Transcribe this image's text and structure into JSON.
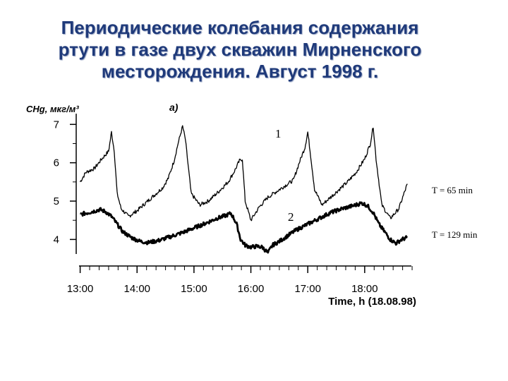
{
  "slide": {
    "title_lines": [
      "Периодические колебания содержания",
      "ртути в газе двух скважин Мирненского",
      "месторождения. Август 1998 г."
    ]
  },
  "chart_data": {
    "type": "line",
    "panel_label": "а)",
    "ylabel": "CHg, мкг/м³",
    "xlabel": "Time, h (18.08.98)",
    "ylim": [
      3.4,
      7.3
    ],
    "xlim": [
      12.98,
      18.82
    ],
    "yticks": [
      7,
      6,
      5,
      4
    ],
    "xticks": [
      {
        "label": "13:00",
        "x": 13.0
      },
      {
        "label": "14:00",
        "x": 14.0
      },
      {
        "label": "15:00",
        "x": 15.0
      },
      {
        "label": "16:00",
        "x": 16.0
      },
      {
        "label": "17:00",
        "x": 17.0
      },
      {
        "label": "18:00",
        "x": 18.0
      }
    ],
    "series": [
      {
        "name": "1",
        "x": [
          13.0,
          13.1,
          13.25,
          13.38,
          13.5,
          13.55,
          13.6,
          13.65,
          13.72,
          13.85,
          14.0,
          14.15,
          14.3,
          14.45,
          14.55,
          14.65,
          14.72,
          14.8,
          14.85,
          14.95,
          15.1,
          15.25,
          15.4,
          15.5,
          15.6,
          15.7,
          15.8,
          15.85,
          15.9,
          16.0,
          16.15,
          16.3,
          16.45,
          16.6,
          16.75,
          16.85,
          16.95,
          17.0,
          17.05,
          17.12,
          17.25,
          17.4,
          17.55,
          17.7,
          17.85,
          18.0,
          18.1,
          18.15,
          18.2,
          18.3,
          18.45,
          18.6,
          18.75
        ],
        "values": [
          5.5,
          5.75,
          5.85,
          6.1,
          6.3,
          6.8,
          6.3,
          5.2,
          4.8,
          4.6,
          4.75,
          4.95,
          5.15,
          5.35,
          5.6,
          6.05,
          6.5,
          6.95,
          6.6,
          5.2,
          4.9,
          5.0,
          5.2,
          5.35,
          5.5,
          5.75,
          6.05,
          6.1,
          5.0,
          4.5,
          4.85,
          5.1,
          5.25,
          5.4,
          5.55,
          6.0,
          6.4,
          6.8,
          6.2,
          5.3,
          4.9,
          5.1,
          5.3,
          5.5,
          5.75,
          6.1,
          6.5,
          6.95,
          6.1,
          4.9,
          4.55,
          4.8,
          5.45
        ],
        "annotation": "T = 65 min"
      },
      {
        "name": "2",
        "x": [
          13.0,
          13.2,
          13.35,
          13.45,
          13.55,
          13.65,
          13.75,
          13.9,
          14.05,
          14.2,
          14.4,
          14.6,
          14.8,
          15.0,
          15.2,
          15.4,
          15.55,
          15.65,
          15.7,
          15.75,
          15.82,
          15.9,
          16.0,
          16.1,
          16.2,
          16.3,
          16.38,
          16.5,
          16.6,
          16.8,
          17.0,
          17.2,
          17.4,
          17.6,
          17.8,
          17.95,
          18.05,
          18.15,
          18.25,
          18.35,
          18.45,
          18.55,
          18.65,
          18.75
        ],
        "values": [
          4.65,
          4.72,
          4.78,
          4.72,
          4.6,
          4.4,
          4.2,
          4.05,
          3.95,
          3.92,
          3.98,
          4.08,
          4.18,
          4.3,
          4.42,
          4.55,
          4.62,
          4.68,
          4.55,
          4.4,
          4.0,
          3.85,
          3.8,
          3.82,
          3.8,
          3.65,
          3.85,
          3.95,
          4.05,
          4.25,
          4.4,
          4.55,
          4.7,
          4.8,
          4.88,
          4.95,
          4.88,
          4.7,
          4.4,
          4.2,
          4.0,
          3.9,
          4.0,
          4.05
        ],
        "annotation": "T = 129 min"
      }
    ]
  }
}
